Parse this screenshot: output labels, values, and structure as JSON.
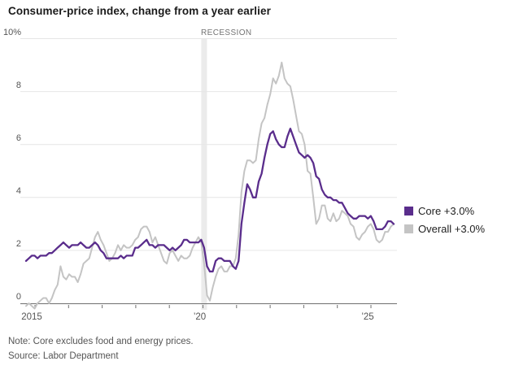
{
  "title": "Consumer-price index, change from a year earlier",
  "recession": {
    "label": "RECESSION",
    "start": "2020-02",
    "end": "2020-04"
  },
  "legend": [
    {
      "label": "Core +3.0%",
      "color_key": "core"
    },
    {
      "label": "Overall +3.0%",
      "color_key": "overall"
    }
  ],
  "axes": {
    "y_ticks": [
      {
        "value": 10,
        "label": "10%"
      },
      {
        "value": 8,
        "label": "8"
      },
      {
        "value": 6,
        "label": "6"
      },
      {
        "value": 4,
        "label": "4"
      },
      {
        "value": 2,
        "label": "2"
      },
      {
        "value": 0,
        "label": "0"
      }
    ],
    "x_tick_labels": [
      {
        "year": 2015,
        "label": "2015"
      },
      {
        "year": 2020,
        "label": "’20"
      },
      {
        "year": 2025,
        "label": "’25"
      }
    ]
  },
  "footnote": "Note: Core excludes food and energy prices.",
  "source": "Source: Labor Department",
  "colors": {
    "core": "#5a2d8c",
    "overall": "#c4c4c4",
    "grid": "#e6e6e6",
    "axis": "#6f6f6f",
    "recession_band": "#ebebeb"
  },
  "chart_data": {
    "type": "line",
    "title": "Consumer-price index, change from a year earlier",
    "unit": "%",
    "frequency": "monthly",
    "x_start": "2015-01",
    "x_end": "2025-09",
    "ylim": [
      -0.5,
      10
    ],
    "grid": true,
    "legend_position": "right",
    "annotations": [
      {
        "label": "RECESSION",
        "start": "2020-02",
        "end": "2020-04"
      }
    ],
    "series": [
      {
        "name": "Core",
        "end_label": "Core +3.0%",
        "color": "#5a2d8c",
        "values": [
          1.6,
          1.7,
          1.8,
          1.8,
          1.7,
          1.8,
          1.8,
          1.8,
          1.9,
          1.9,
          2.0,
          2.1,
          2.2,
          2.3,
          2.2,
          2.1,
          2.2,
          2.2,
          2.2,
          2.3,
          2.2,
          2.1,
          2.1,
          2.2,
          2.3,
          2.2,
          2.0,
          1.9,
          1.7,
          1.7,
          1.7,
          1.7,
          1.7,
          1.8,
          1.7,
          1.8,
          1.8,
          1.8,
          2.1,
          2.1,
          2.2,
          2.3,
          2.4,
          2.2,
          2.2,
          2.1,
          2.2,
          2.2,
          2.2,
          2.1,
          2.0,
          2.1,
          2.0,
          2.1,
          2.2,
          2.4,
          2.4,
          2.3,
          2.3,
          2.3,
          2.3,
          2.4,
          2.1,
          1.4,
          1.2,
          1.2,
          1.6,
          1.7,
          1.7,
          1.6,
          1.6,
          1.6,
          1.4,
          1.3,
          1.6,
          3.0,
          3.8,
          4.5,
          4.3,
          4.0,
          4.0,
          4.6,
          4.9,
          5.5,
          6.0,
          6.4,
          6.5,
          6.2,
          6.0,
          5.9,
          5.9,
          6.3,
          6.6,
          6.3,
          6.0,
          5.7,
          5.6,
          5.5,
          5.6,
          5.5,
          5.3,
          4.8,
          4.7,
          4.3,
          4.1,
          4.0,
          4.0,
          3.9,
          3.9,
          3.8,
          3.8,
          3.6,
          3.4,
          3.3,
          3.2,
          3.2,
          3.3,
          3.3,
          3.3,
          3.2,
          3.3,
          3.1,
          2.8,
          2.8,
          2.8,
          2.9,
          3.1,
          3.1,
          3.0
        ]
      },
      {
        "name": "Overall",
        "end_label": "Overall +3.0%",
        "color": "#c4c4c4",
        "values": [
          -0.1,
          0.0,
          -0.1,
          -0.2,
          0.0,
          0.1,
          0.2,
          0.2,
          0.0,
          0.2,
          0.5,
          0.7,
          1.4,
          1.0,
          0.9,
          1.1,
          1.0,
          1.0,
          0.8,
          1.1,
          1.5,
          1.6,
          1.7,
          2.1,
          2.5,
          2.7,
          2.4,
          2.2,
          1.9,
          1.6,
          1.7,
          1.9,
          2.2,
          2.0,
          2.2,
          2.1,
          2.1,
          2.2,
          2.4,
          2.5,
          2.8,
          2.9,
          2.9,
          2.7,
          2.3,
          2.5,
          2.2,
          1.9,
          1.6,
          1.5,
          1.9,
          2.0,
          1.8,
          1.6,
          1.8,
          1.7,
          1.7,
          1.8,
          2.1,
          2.3,
          2.5,
          2.3,
          1.5,
          0.3,
          0.1,
          0.6,
          1.0,
          1.3,
          1.4,
          1.2,
          1.2,
          1.4,
          1.4,
          1.7,
          2.6,
          4.2,
          5.0,
          5.4,
          5.4,
          5.3,
          5.4,
          6.2,
          6.8,
          7.0,
          7.5,
          7.9,
          8.5,
          8.3,
          8.6,
          9.1,
          8.5,
          8.3,
          8.2,
          7.7,
          7.1,
          6.5,
          6.4,
          6.0,
          5.0,
          4.9,
          4.0,
          3.0,
          3.2,
          3.7,
          3.7,
          3.2,
          3.1,
          3.4,
          3.1,
          3.2,
          3.5,
          3.4,
          3.3,
          3.0,
          2.9,
          2.5,
          2.4,
          2.6,
          2.7,
          2.9,
          3.0,
          2.8,
          2.4,
          2.3,
          2.4,
          2.7,
          2.7,
          2.9,
          3.0
        ]
      }
    ]
  }
}
